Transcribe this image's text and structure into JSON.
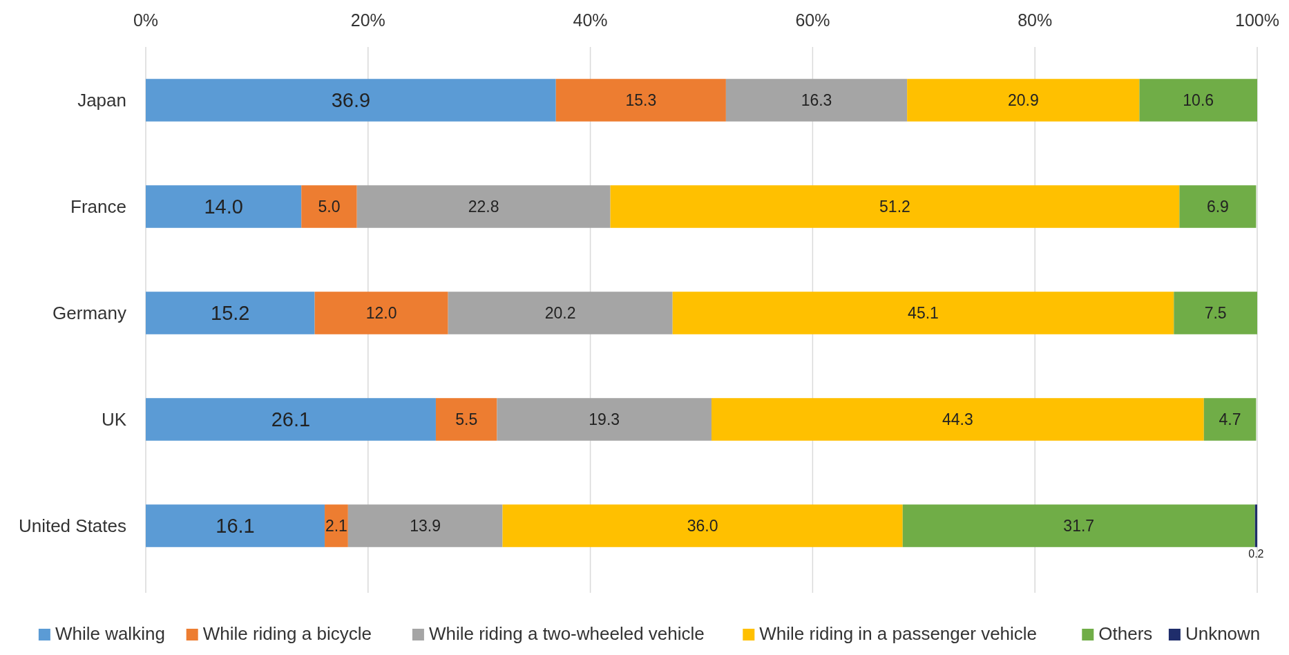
{
  "chart_data": {
    "type": "bar",
    "orientation": "horizontal",
    "stacked": true,
    "categories": [
      "Japan",
      "France",
      "Germany",
      "UK",
      "United States"
    ],
    "series": [
      {
        "name": "While walking",
        "color": "#5b9bd5",
        "values": [
          36.9,
          14.0,
          15.2,
          26.1,
          16.1
        ],
        "value_labels": [
          "36.9",
          "14.0",
          "15.2",
          "26.1",
          "16.1"
        ]
      },
      {
        "name": "While riding a bicycle",
        "color": "#ed7d31",
        "values": [
          15.3,
          5.0,
          12.0,
          5.5,
          2.1
        ],
        "value_labels": [
          "15.3",
          "5.0",
          "12.0",
          "5.5",
          "2.1"
        ]
      },
      {
        "name": "While riding a two-wheeled vehicle",
        "color": "#a5a5a5",
        "values": [
          16.3,
          22.8,
          20.2,
          19.3,
          13.9
        ],
        "value_labels": [
          "16.3",
          "22.8",
          "20.2",
          "19.3",
          "13.9"
        ]
      },
      {
        "name": "While riding in a passenger vehicle",
        "color": "#ffc000",
        "values": [
          20.9,
          51.2,
          45.1,
          44.3,
          36.0
        ],
        "value_labels": [
          "20.9",
          "51.2",
          "45.1",
          "44.3",
          "36.0"
        ]
      },
      {
        "name": "Others",
        "color": "#70ad47",
        "values": [
          10.6,
          6.9,
          7.5,
          4.7,
          31.7
        ],
        "value_labels": [
          "10.6",
          "6.9",
          "7.5",
          "4.7",
          "31.7"
        ]
      },
      {
        "name": "Unknown",
        "color": "#1f2d6b",
        "values": [
          null,
          null,
          null,
          null,
          0.2
        ],
        "value_labels": [
          null,
          null,
          null,
          null,
          "0.2"
        ]
      }
    ],
    "xlim": [
      0,
      100
    ],
    "xticks": [
      {
        "value": 0,
        "label": "0%"
      },
      {
        "value": 20,
        "label": "20%"
      },
      {
        "value": 40,
        "label": "40%"
      },
      {
        "value": 60,
        "label": "60%"
      },
      {
        "value": 80,
        "label": "80%"
      },
      {
        "value": 100,
        "label": "100%"
      }
    ],
    "grid": "x",
    "legend": "bottom"
  }
}
